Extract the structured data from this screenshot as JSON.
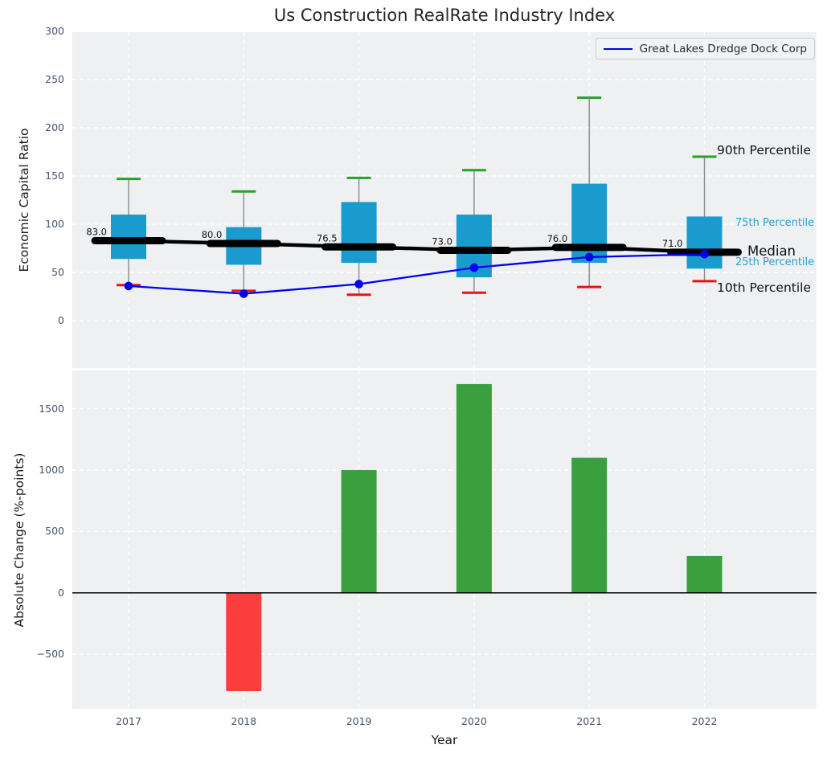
{
  "title": "Us Construction RealRate Industry Index",
  "legend": {
    "label": "Great Lakes Dredge Dock Corp"
  },
  "annotations": {
    "p90": "90th Percentile",
    "p75": "75th Percentile",
    "median": "Median",
    "p25": "25th Percentile",
    "p10": "10th Percentile"
  },
  "colors": {
    "box": "#1a9bce",
    "p90_cap": "#2aa02a",
    "p10_cap": "#e61414",
    "whisker": "#8a8a8a",
    "median_line": "#000000",
    "company_line": "#0000ee",
    "bar_positive": "#3aa03e",
    "bar_negative": "#fa3d3d",
    "plot_bg": "#eef0f2",
    "grid": "#ffffff",
    "tick_label": "#45536b",
    "annotation_cyan": "#24a2d4"
  },
  "chart_data": [
    {
      "type": "boxplot+line",
      "title": "Us Construction RealRate Industry Index",
      "ylabel": "Economic Capital Ratio",
      "categories": [
        2017,
        2018,
        2019,
        2020,
        2021,
        2022
      ],
      "series": [
        {
          "name": "90th Percentile",
          "values": [
            147,
            134,
            148,
            156,
            231,
            170
          ]
        },
        {
          "name": "75th Percentile",
          "values": [
            110,
            97,
            123,
            110,
            142,
            108
          ]
        },
        {
          "name": "Median",
          "values": [
            83.0,
            80.0,
            76.5,
            73.0,
            76.0,
            71.0
          ]
        },
        {
          "name": "25th Percentile",
          "values": [
            64,
            58,
            60,
            45,
            60,
            54
          ]
        },
        {
          "name": "10th Percentile",
          "values": [
            37,
            31,
            27,
            29,
            35,
            41
          ]
        },
        {
          "name": "Great Lakes Dredge Dock Corp",
          "values": [
            36,
            28,
            38,
            55,
            66,
            69
          ]
        }
      ],
      "median_labels": [
        "83.0",
        "80.0",
        "76.5",
        "73.0",
        "76.0",
        "71.0"
      ],
      "yticks": [
        0,
        50,
        100,
        150,
        200,
        250,
        300
      ],
      "ylim": [
        -49,
        299
      ],
      "grid": true,
      "legend_entry": "Great Lakes Dredge Dock Corp",
      "legend_position": "upper right"
    },
    {
      "type": "bar",
      "ylabel": "Absolute Change (%-points)",
      "xlabel": "Year",
      "categories": [
        2017,
        2018,
        2019,
        2020,
        2021,
        2022
      ],
      "values": [
        0,
        -800,
        1000,
        1700,
        1100,
        300
      ],
      "yticks": [
        -500,
        0,
        500,
        1000,
        1500
      ],
      "ylim": [
        -944,
        1811
      ],
      "grid": true
    }
  ]
}
